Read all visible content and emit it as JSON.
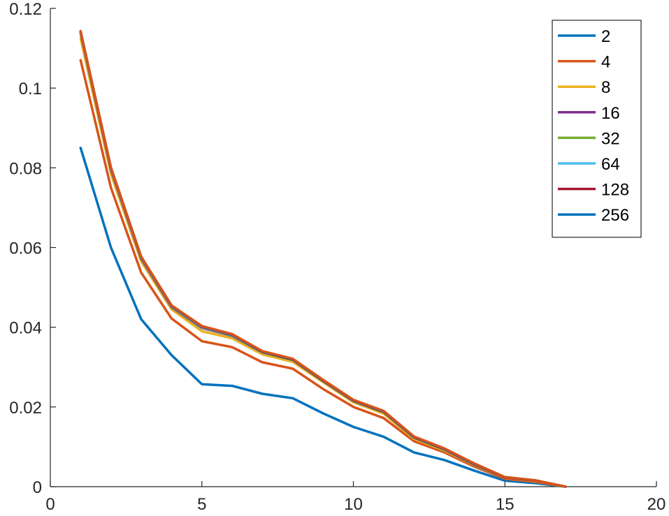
{
  "chart_data": {
    "type": "line",
    "title": "",
    "xlabel": "",
    "ylabel": "",
    "xlim": [
      0,
      20
    ],
    "ylim": [
      0,
      0.12
    ],
    "xticks": [
      0,
      5,
      10,
      15,
      20
    ],
    "yticks": [
      0,
      0.02,
      0.04,
      0.06,
      0.08,
      0.1,
      0.12
    ],
    "xtick_labels": [
      "0",
      "5",
      "10",
      "15",
      "20"
    ],
    "ytick_labels": [
      "0",
      "0.02",
      "0.04",
      "0.06",
      "0.08",
      "0.1",
      "0.12"
    ],
    "grid": false,
    "legend_position": "top-right",
    "x": [
      1,
      2,
      3,
      4,
      5,
      6,
      7,
      8,
      9,
      10,
      11,
      12,
      13,
      14,
      15,
      16,
      17
    ],
    "series": [
      {
        "name": "2",
        "color": "#0072BD",
        "values": [
          0.085,
          0.06,
          0.042,
          0.033,
          0.0257,
          0.0253,
          0.0233,
          0.0222,
          0.0184,
          0.015,
          0.0125,
          0.0086,
          0.0067,
          0.004,
          0.0015,
          0.0009,
          0.0
        ]
      },
      {
        "name": "4",
        "color": "#D95319",
        "values": [
          0.107,
          0.075,
          0.0537,
          0.0422,
          0.0365,
          0.035,
          0.0312,
          0.0296,
          0.0245,
          0.02,
          0.0172,
          0.0114,
          0.0086,
          0.005,
          0.002,
          0.0012,
          0.0
        ]
      },
      {
        "name": "8",
        "color": "#EDB120",
        "values": [
          0.1125,
          0.0785,
          0.0565,
          0.0445,
          0.039,
          0.0372,
          0.0332,
          0.0313,
          0.0262,
          0.0212,
          0.0183,
          0.012,
          0.0091,
          0.0054,
          0.0022,
          0.0014,
          0.0
        ]
      },
      {
        "name": "16",
        "color": "#7E2F8E",
        "values": [
          0.1138,
          0.0795,
          0.0572,
          0.045,
          0.0398,
          0.0378,
          0.0337,
          0.0318,
          0.0265,
          0.0215,
          0.0187,
          0.0123,
          0.0093,
          0.0055,
          0.0023,
          0.0015,
          0.0
        ]
      },
      {
        "name": "32",
        "color": "#77AC30",
        "values": [
          0.1139,
          0.0797,
          0.0573,
          0.0451,
          0.0399,
          0.0379,
          0.0337,
          0.0318,
          0.0265,
          0.0215,
          0.0187,
          0.0123,
          0.0093,
          0.0055,
          0.0023,
          0.0015,
          0.0
        ]
      },
      {
        "name": "64",
        "color": "#4DBEEE",
        "values": [
          0.114,
          0.0798,
          0.0574,
          0.0452,
          0.04,
          0.038,
          0.0338,
          0.0319,
          0.0266,
          0.0216,
          0.0188,
          0.0124,
          0.0094,
          0.0056,
          0.0023,
          0.0015,
          0.0
        ]
      },
      {
        "name": "128",
        "color": "#A2142F",
        "values": [
          0.1141,
          0.0799,
          0.0575,
          0.0453,
          0.0401,
          0.0381,
          0.0338,
          0.0319,
          0.0266,
          0.0216,
          0.0188,
          0.0124,
          0.0094,
          0.0056,
          0.0023,
          0.0015,
          0.0
        ]
      },
      {
        "name": "256",
        "color": "#0072BD",
        "values": [
          0.1142,
          0.08,
          0.0576,
          0.0454,
          0.0402,
          0.0382,
          0.0339,
          0.032,
          0.0267,
          0.0217,
          0.0189,
          0.0125,
          0.0095,
          0.0057,
          0.0024,
          0.0016,
          0.0
        ]
      }
    ],
    "overlay_series": {
      "name": "4",
      "color": "#D95319",
      "values": [
        0.1143,
        0.0801,
        0.0577,
        0.0455,
        0.0403,
        0.0383,
        0.034,
        0.0321,
        0.0268,
        0.0218,
        0.019,
        0.0126,
        0.0096,
        0.0058,
        0.0024,
        0.0016,
        0.0
      ]
    }
  }
}
